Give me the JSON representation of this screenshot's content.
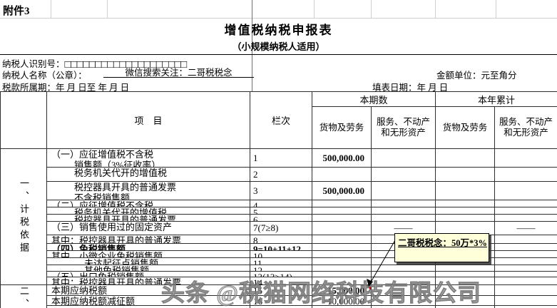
{
  "page": {
    "attachment_label": "附件3",
    "title": "增值税纳税申报表",
    "subtitle": "（小规模纳税人适用）",
    "taxpayer_id": {
      "label": "纳税人识别号：",
      "boxes": "□□□□□□□□□□□□□□□□□□□□"
    },
    "taxpayer_name": {
      "label": "纳税人名称（公章）：",
      "value": "微信搜索关注：二哥税税念"
    },
    "amount_unit": "金额单位：元至角分",
    "tax_period": {
      "label": "税款所属期：",
      "value": "年  月  日至      年  月  日"
    },
    "fill_date": {
      "label": "填表日期：",
      "value": "年  月  日"
    }
  },
  "table": {
    "header": {
      "item": "项　目",
      "column_no": "栏次",
      "current_period": "本期数",
      "year_to_date": "本年累计",
      "sub_goods": "货物及劳务",
      "sub_services": "服务、不动产和无形资产"
    },
    "sections": [
      {
        "label": "一、计税依据"
      },
      {
        "label": "二、"
      }
    ],
    "rows": [
      {
        "lines": [
          {
            "t": "（一）应征增值税不含税",
            "i": 0
          },
          {
            "t": "销售额（3%征收率）",
            "i": 1
          }
        ],
        "lan": "1",
        "v": [
          "500,000.00",
          "",
          "",
          ""
        ],
        "vbold": true
      },
      {
        "lines": [
          {
            "t": "税务机关代开的增值税",
            "i": 1
          }
        ],
        "lan": "2",
        "v": [
          "",
          "",
          "",
          ""
        ]
      },
      {
        "lines": [
          {
            "t": "税控器具开具的普通发票",
            "i": 1
          },
          {
            "t": "不含税销售额",
            "i": 1
          }
        ],
        "lan": "3",
        "v": [
          "500,000.00",
          "",
          "",
          ""
        ],
        "vbold": true
      },
      {
        "lines": [
          {
            "t": "（二）应征增值税不含税",
            "i": 0
          }
        ],
        "lan": "4",
        "v": [
          "",
          "",
          "",
          ""
        ]
      },
      {
        "lines": [
          {
            "t": "税务机关代开的增值税",
            "i": 1
          }
        ],
        "lan": "5",
        "v": [
          "",
          "",
          "",
          ""
        ]
      },
      {
        "lines": [
          {
            "t": "税控器具开具的普通发票",
            "i": 1
          }
        ],
        "lan": "6",
        "v": [
          "",
          "",
          "",
          ""
        ]
      },
      {
        "lines": [
          {
            "t": "（三）销售使用过的固定资产",
            "i": 0
          }
        ],
        "lan": "7(7≥8)",
        "v": [
          "",
          "——",
          "",
          "——"
        ]
      },
      {
        "lines": [
          {
            "t": "其中：税控器具开具的普通发票",
            "i": 0
          }
        ],
        "lan": "8",
        "v": [
          "",
          "",
          "",
          ""
        ]
      },
      {
        "lines": [
          {
            "t": "（四）免税销售额",
            "i": 0
          }
        ],
        "lan": "9=10+11+12",
        "v": [
          "",
          "",
          "",
          ""
        ],
        "bold": true
      },
      {
        "lines": [
          {
            "t": "其中　小微企业免税销售额",
            "i": 0
          }
        ],
        "lan": "10",
        "v": [
          "",
          "",
          "",
          ""
        ]
      },
      {
        "lines": [
          {
            "t": "未达起征点销售额",
            "i": 2
          }
        ],
        "lan": "11",
        "v": [
          "",
          "",
          "",
          ""
        ]
      },
      {
        "lines": [
          {
            "t": "其他免税销售额",
            "i": 2
          }
        ],
        "lan": "12",
        "v": [
          "",
          "",
          "",
          ""
        ]
      },
      {
        "lines": [
          {
            "t": "（五）出口免税销售额",
            "i": 0
          }
        ],
        "lan": "13(13≥14)",
        "v": [
          "",
          "",
          "",
          ""
        ]
      },
      {
        "lines": [
          {
            "t": "其中：税控器具开具的普通发票",
            "i": 0
          }
        ],
        "lan": "14",
        "v": [
          "",
          "",
          "",
          ""
        ]
      },
      {
        "lines": [
          {
            "t": "本期应纳税额",
            "i": 0
          }
        ],
        "lan": "15",
        "v": [
          "15,000.00",
          "",
          "",
          ""
        ],
        "vbold": true,
        "marker": true
      },
      {
        "lines": [
          {
            "t": "本期应纳税额减征额",
            "i": 0
          }
        ],
        "lan": "16",
        "v": [
          "10,000.00",
          "",
          "",
          ""
        ]
      },
      {
        "lines": [],
        "lan": "",
        "v": [
          "",
          "",
          "",
          ""
        ]
      }
    ]
  },
  "comment": {
    "text": "二哥税税念：50万*3%"
  },
  "watermark": "头条 @税猫网络科技有限公司",
  "colors": {
    "comment_bg": "#ffffd9",
    "marker_red": "#cc0000",
    "watermark_gray": "#969696"
  }
}
